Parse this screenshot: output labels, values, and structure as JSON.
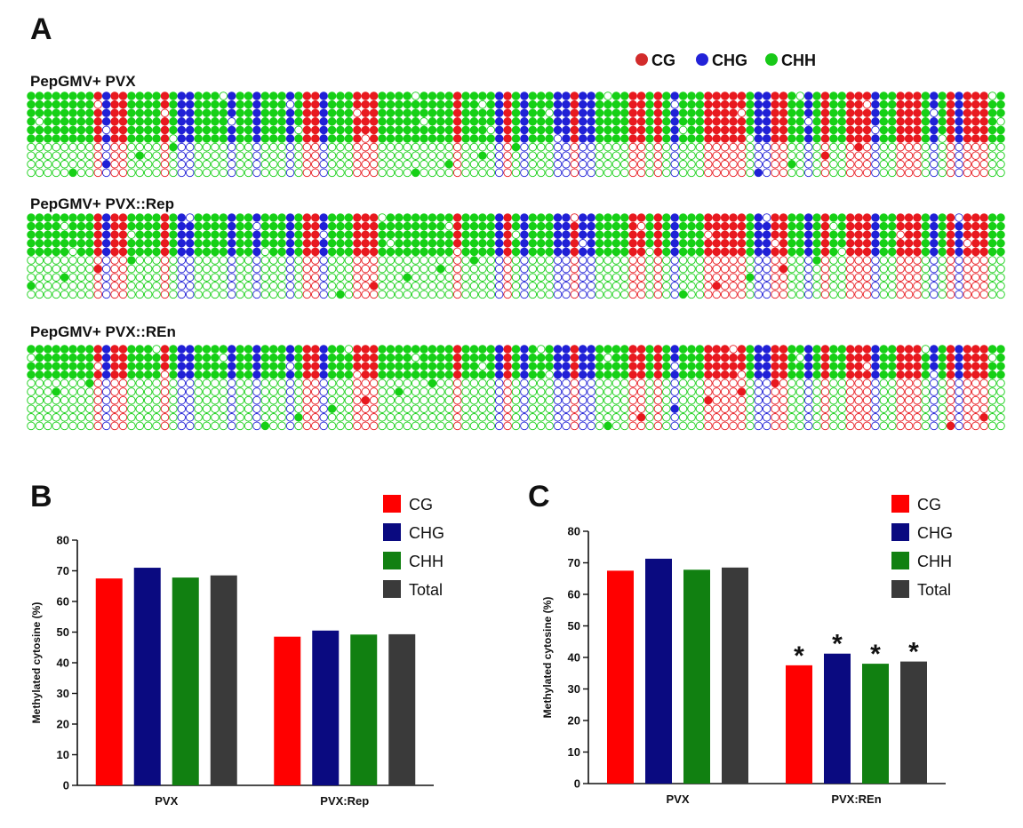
{
  "panel_a": {
    "letter": "A",
    "legend": [
      {
        "label": "CG",
        "color": "#d22b2b"
      },
      {
        "label": "CHG",
        "color": "#2222d8"
      },
      {
        "label": "CHH",
        "color": "#18c918"
      }
    ],
    "samples": [
      {
        "label": "PepGMV+ PVX",
        "methylated_clones_of_10": 6
      },
      {
        "label": "PepGMV+ PVX::Rep",
        "methylated_clones_of_10": 5
      },
      {
        "label": "PepGMV+ PVX::REn",
        "methylated_clones_of_10": 4
      }
    ],
    "context_colors": {
      "CG": "#e8191f",
      "CHG": "#2020d6",
      "CHH": "#16d016"
    }
  },
  "chart_data": [
    {
      "type": "bar",
      "panel": "B",
      "title": "",
      "xlabel": "",
      "ylabel": "Methylated cytosine (%)",
      "ylim": [
        0,
        80
      ],
      "yticks": [
        0,
        10,
        20,
        30,
        40,
        50,
        60,
        70,
        80
      ],
      "categories": [
        "PVX",
        "PVX:Rep"
      ],
      "series": [
        {
          "name": "CG",
          "color": "#ff0000",
          "values": [
            67.5,
            48.5
          ]
        },
        {
          "name": "CHG",
          "color": "#0a0a80",
          "values": [
            71.0,
            50.5
          ]
        },
        {
          "name": "CHH",
          "color": "#118011",
          "values": [
            67.8,
            49.2
          ]
        },
        {
          "name": "Total",
          "color": "#3a3a3a",
          "values": [
            68.5,
            49.3
          ]
        }
      ],
      "significance": [
        [
          "",
          "",
          "",
          ""
        ],
        [
          "",
          "",
          "",
          ""
        ]
      ],
      "legend": "top-right"
    },
    {
      "type": "bar",
      "panel": "C",
      "title": "",
      "xlabel": "",
      "ylabel": "Methylated cytosine (%)",
      "ylim": [
        0,
        80
      ],
      "yticks": [
        0,
        10,
        20,
        30,
        40,
        50,
        60,
        70,
        80
      ],
      "categories": [
        "PVX",
        "PVX:REn"
      ],
      "series": [
        {
          "name": "CG",
          "color": "#ff0000",
          "values": [
            67.5,
            37.5
          ]
        },
        {
          "name": "CHG",
          "color": "#0a0a80",
          "values": [
            71.3,
            41.2
          ]
        },
        {
          "name": "CHH",
          "color": "#118011",
          "values": [
            67.8,
            38.0
          ]
        },
        {
          "name": "Total",
          "color": "#3a3a3a",
          "values": [
            68.5,
            38.7
          ]
        }
      ],
      "significance": [
        [
          "",
          "",
          "",
          ""
        ],
        [
          "*",
          "*",
          "*",
          "*"
        ]
      ],
      "legend": "top-right"
    }
  ]
}
